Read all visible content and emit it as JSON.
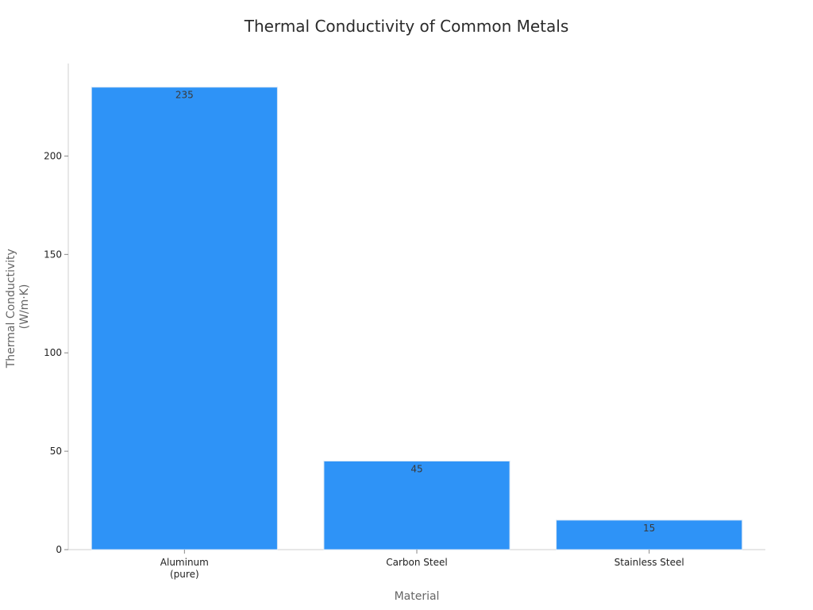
{
  "chart_data": {
    "type": "bar",
    "title": "Thermal Conductivity of Common Metals",
    "xlabel": "Material",
    "ylabel": [
      "Thermal Conductivity",
      "(W/m·K)"
    ],
    "categories": [
      [
        "Aluminum",
        "(pure)"
      ],
      [
        "Carbon Steel"
      ],
      [
        "Stainless Steel"
      ]
    ],
    "values": [
      235,
      45,
      15
    ],
    "data_labels": [
      "235",
      "45",
      "15"
    ],
    "yticks": [
      0,
      50,
      100,
      150,
      200
    ],
    "ylim": [
      0,
      247
    ],
    "grid": false,
    "legend": "none",
    "colors": {
      "bar": "#2e93f7",
      "bar_edge": "#d7e6f5"
    }
  }
}
